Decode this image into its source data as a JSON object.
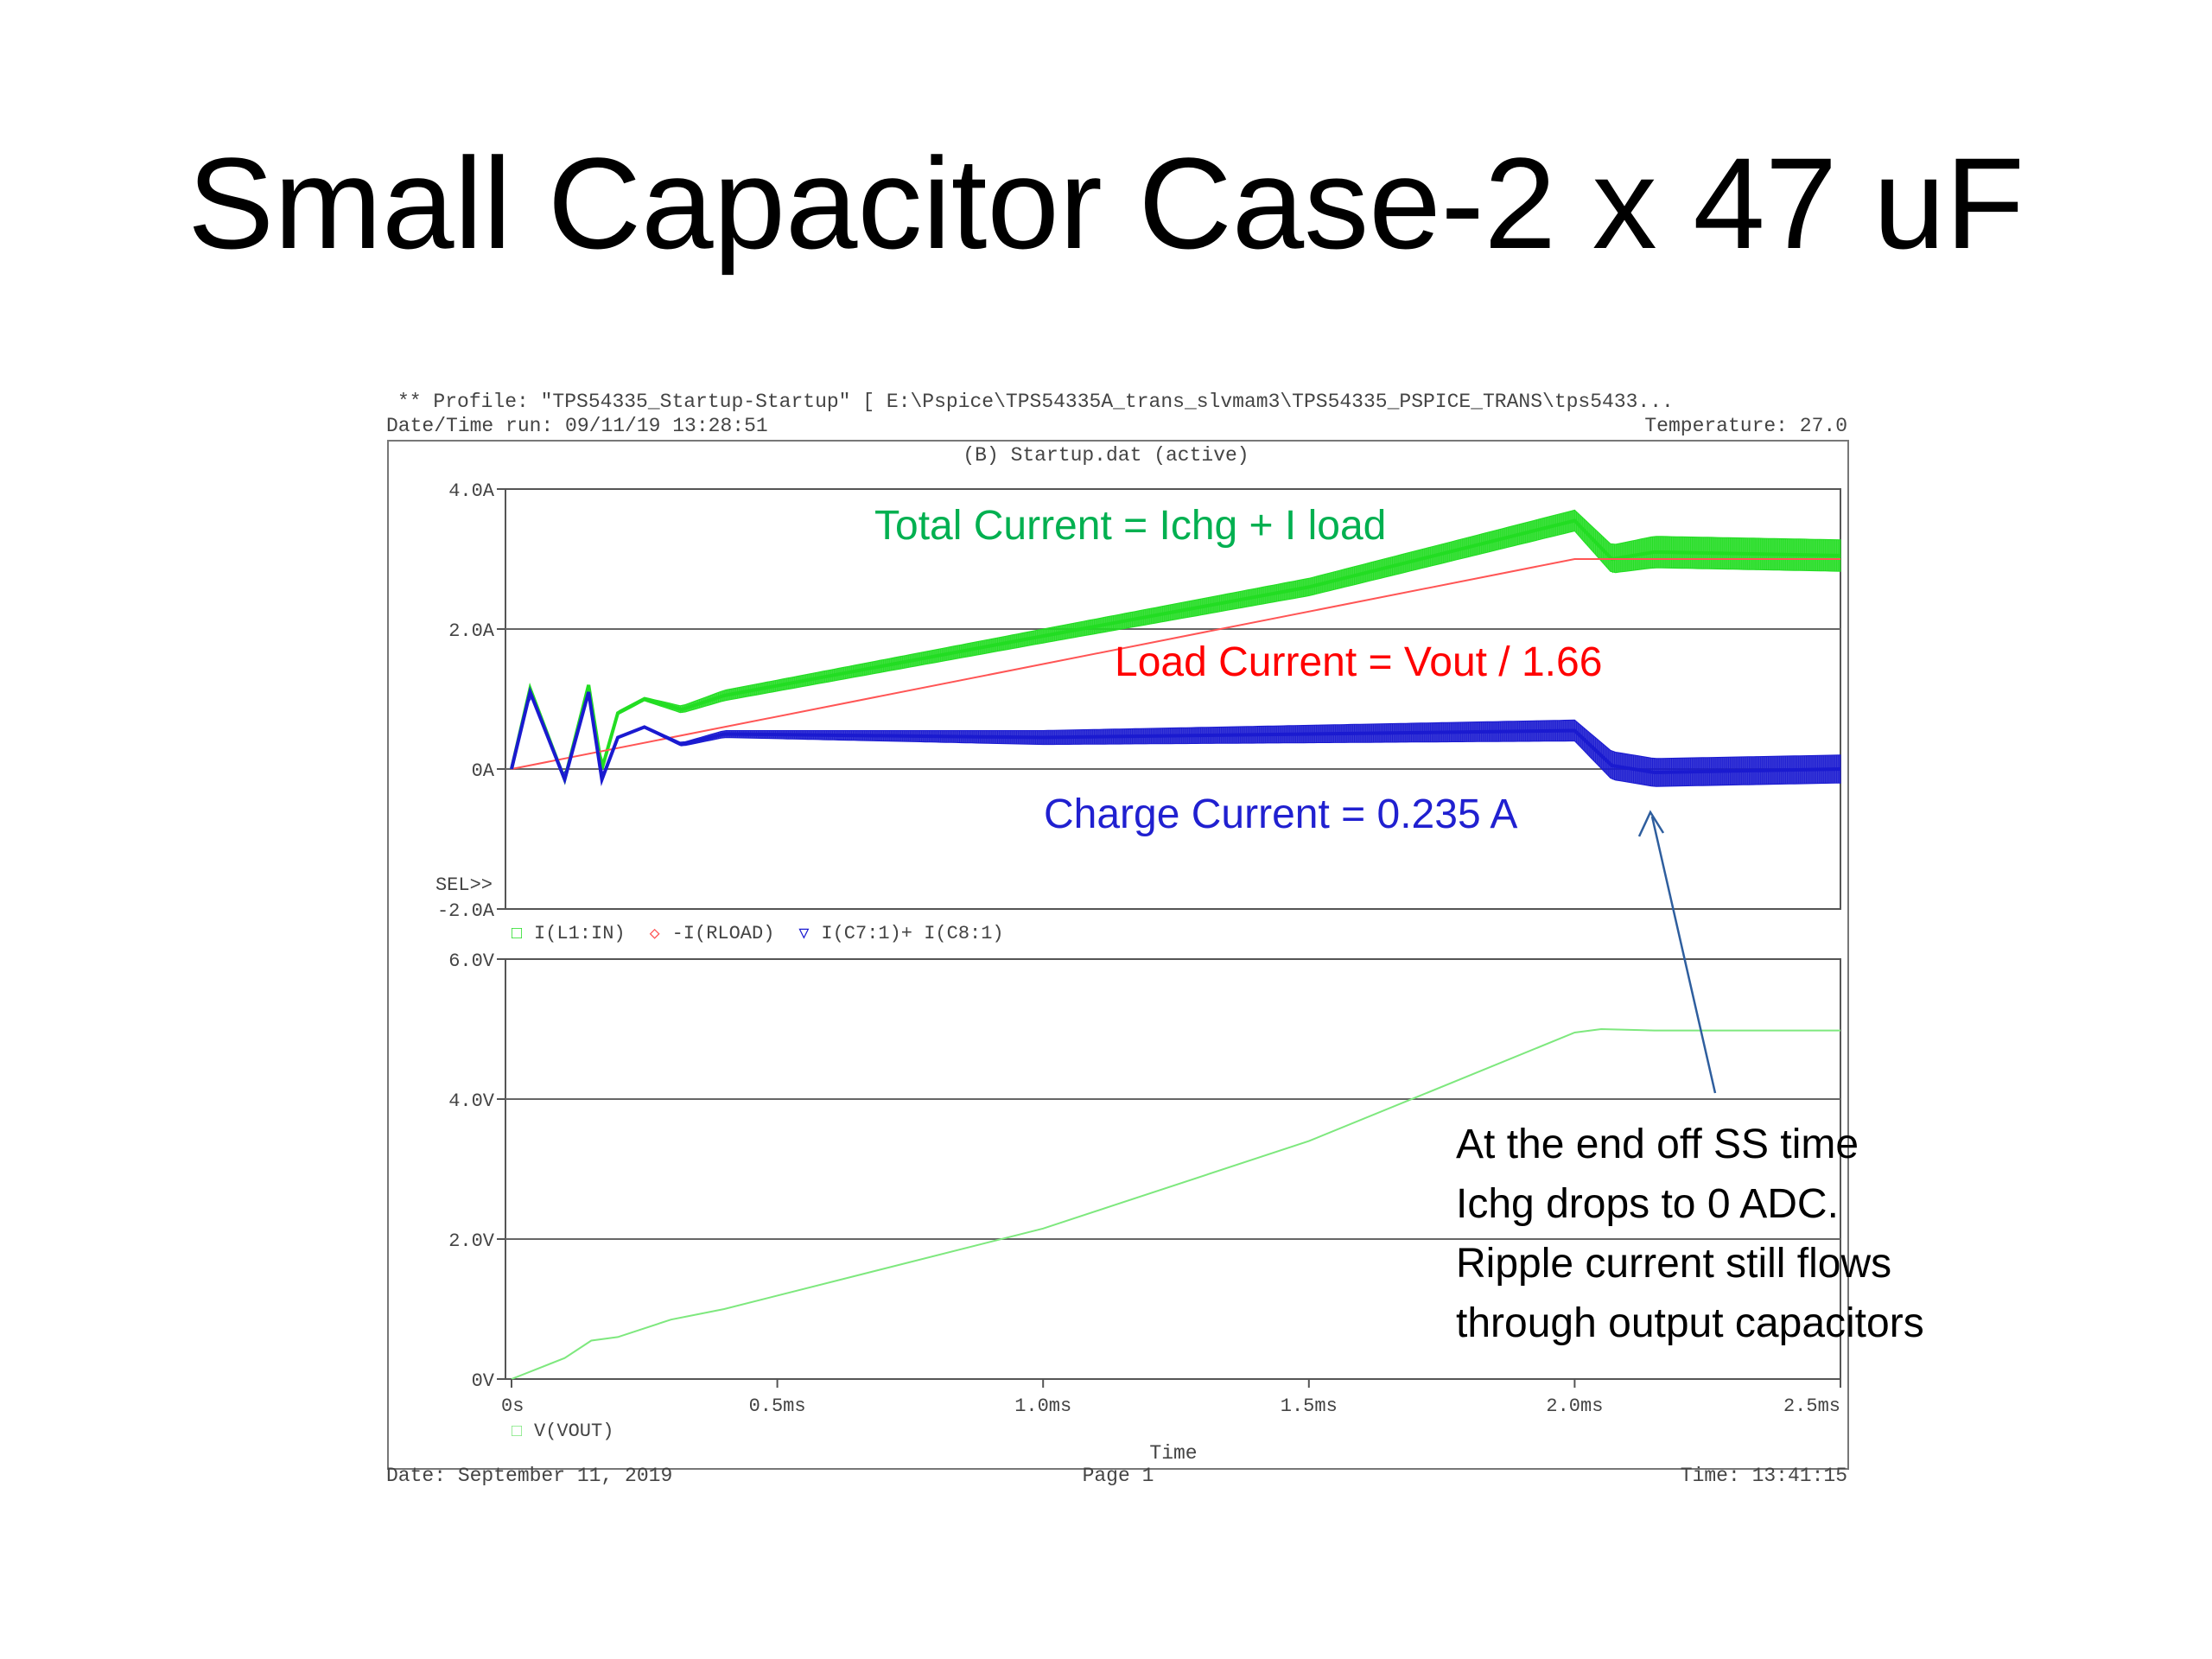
{
  "slide": {
    "title": "Small Capacitor Case-2 x 47 uF"
  },
  "header": {
    "profile": "** Profile: \"TPS54335_Startup-Startup\"  [ E:\\Pspice\\TPS54335A_trans_slvmam3\\TPS54335_PSPICE_TRANS\\tps5433...",
    "datetime_run": "Date/Time run: 09/11/19 13:28:51",
    "temperature": "Temperature: 27.0",
    "file": "(B) Startup.dat (active)"
  },
  "footer": {
    "date": "Date: September 11, 2019",
    "page": "Page 1",
    "time": "Time: 13:41:15"
  },
  "annotations": {
    "total": "Total Current = Ichg + I load",
    "load": "Load Current = Vout / 1.66",
    "charge": "Charge Current = 0.235 A",
    "note_lines": [
      "At the end off SS time",
      "Ichg drops to 0 ADC.",
      "Ripple current still flows",
      "through output capacitors"
    ]
  },
  "colors": {
    "total": "#22dd22",
    "load": "#ff5555",
    "charge": "#1a1ad0",
    "vout": "#7ee87e",
    "arrow": "#2e5e9e",
    "annotation_total": "#00b050",
    "annotation_load": "#ff0000",
    "annotation_charge": "#2020d0"
  },
  "chart_data": [
    {
      "type": "line",
      "ylim": [
        -2.0,
        4.0
      ],
      "xlim": [
        0,
        2.5
      ],
      "yticks": [
        {
          "value": 4.0,
          "label": "4.0A"
        },
        {
          "value": 2.0,
          "label": "2.0A"
        },
        {
          "value": 0.0,
          "label": "0A"
        },
        {
          "value": -2.0,
          "label": "-2.0A"
        }
      ],
      "sel_label": "SEL>>",
      "legend": [
        {
          "marker": "□",
          "name": "I(L1:IN)",
          "color": "#22dd22"
        },
        {
          "marker": "◇",
          "name": "-I(RLOAD)",
          "color": "#ff5555"
        },
        {
          "marker": "▽",
          "name": "I(C7:1)+ I(C8:1)",
          "color": "#1a1ad0"
        }
      ],
      "series": [
        {
          "name": "I(L1:IN)",
          "x": [
            0,
            0.035,
            0.1,
            0.145,
            0.17,
            0.2,
            0.25,
            0.32,
            0.4,
            1.0,
            1.5,
            2.0,
            2.07,
            2.15,
            2.5
          ],
          "y": [
            0,
            1.15,
            -0.15,
            1.2,
            0.0,
            0.8,
            1.0,
            0.85,
            1.05,
            1.9,
            2.6,
            3.55,
            3.0,
            3.1,
            3.05
          ],
          "ripple": [
            0,
            0,
            0,
            0,
            0,
            0.05,
            0.05,
            0.1,
            0.15,
            0.2,
            0.25,
            0.3,
            0.4,
            0.45,
            0.45
          ]
        },
        {
          "name": "-I(RLOAD)",
          "x": [
            0,
            2.0,
            2.5
          ],
          "y": [
            0,
            3.0,
            3.0
          ],
          "ripple": [
            0,
            0,
            0
          ]
        },
        {
          "name": "I(C7:1)+ I(C8:1)",
          "x": [
            0,
            0.035,
            0.1,
            0.145,
            0.17,
            0.2,
            0.25,
            0.32,
            0.4,
            1.0,
            1.5,
            2.0,
            2.07,
            2.15,
            2.5
          ],
          "y": [
            0,
            1.1,
            -0.15,
            1.1,
            -0.15,
            0.45,
            0.6,
            0.35,
            0.5,
            0.45,
            0.5,
            0.55,
            0.05,
            -0.05,
            0.0
          ],
          "ripple": [
            0,
            0,
            0,
            0,
            0,
            0.02,
            0.03,
            0.05,
            0.1,
            0.2,
            0.25,
            0.3,
            0.4,
            0.4,
            0.4
          ]
        }
      ]
    },
    {
      "type": "line",
      "ylim": [
        0,
        6.0
      ],
      "xlim": [
        0,
        2.5
      ],
      "xlabel": "Time",
      "xticks": [
        {
          "value": 0,
          "label": "0s"
        },
        {
          "value": 0.5,
          "label": "0.5ms"
        },
        {
          "value": 1.0,
          "label": "1.0ms"
        },
        {
          "value": 1.5,
          "label": "1.5ms"
        },
        {
          "value": 2.0,
          "label": "2.0ms"
        },
        {
          "value": 2.5,
          "label": "2.5ms"
        }
      ],
      "yticks": [
        {
          "value": 6.0,
          "label": "6.0V"
        },
        {
          "value": 4.0,
          "label": "4.0V"
        },
        {
          "value": 2.0,
          "label": "2.0V"
        },
        {
          "value": 0.0,
          "label": "0V"
        }
      ],
      "legend": [
        {
          "marker": "□",
          "name": "V(VOUT)",
          "color": "#7ee87e"
        }
      ],
      "series": [
        {
          "name": "V(VOUT)",
          "x": [
            0,
            0.1,
            0.15,
            0.2,
            0.3,
            0.4,
            1.0,
            1.5,
            2.0,
            2.05,
            2.15,
            2.5
          ],
          "y": [
            0,
            0.3,
            0.55,
            0.6,
            0.85,
            1.0,
            2.15,
            3.4,
            4.95,
            5.0,
            4.98,
            4.98
          ]
        }
      ]
    }
  ]
}
